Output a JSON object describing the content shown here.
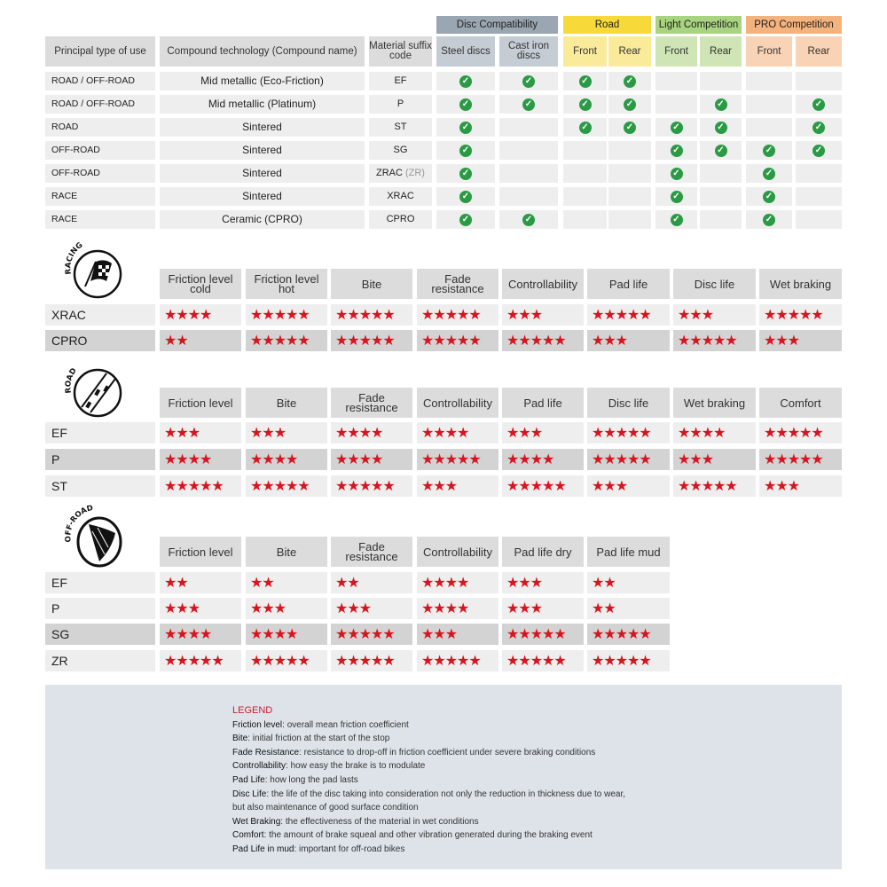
{
  "compatibility": {
    "group_headers": [
      {
        "label": "Disc Compatibility",
        "color": "#9aa6b1"
      },
      {
        "label": "Road",
        "color": "#f7d93a"
      },
      {
        "label": "Light Competition",
        "color": "#a8d37f"
      },
      {
        "label": "PRO Competition",
        "color": "#f4b27d"
      }
    ],
    "sub_header_colors": [
      "#c5ccd3",
      "#faeb9a",
      "#cfe5b5",
      "#f9d3b5"
    ],
    "headers": [
      "Principal type of use",
      "Compound technology (Compound name)",
      "Material suffix code",
      "Steel discs",
      "Cast iron discs",
      "Front",
      "Rear",
      "Front",
      "Rear",
      "Front",
      "Rear"
    ],
    "check_color": "#2a9a45",
    "rows": [
      {
        "use": "ROAD / OFF-ROAD",
        "compound": "Mid metallic (Eco-Friction)",
        "code": "EF",
        "code_note": "",
        "checks": [
          1,
          1,
          1,
          1,
          0,
          0,
          0,
          0
        ]
      },
      {
        "use": "ROAD / OFF-ROAD",
        "compound": "Mid metallic (Platinum)",
        "code": "P",
        "code_note": "",
        "checks": [
          1,
          1,
          1,
          1,
          0,
          1,
          0,
          1
        ]
      },
      {
        "use": "ROAD",
        "compound": "Sintered",
        "code": "ST",
        "code_note": "",
        "checks": [
          1,
          0,
          1,
          1,
          1,
          1,
          0,
          1
        ]
      },
      {
        "use": "OFF-ROAD",
        "compound": "Sintered",
        "code": "SG",
        "code_note": "",
        "checks": [
          1,
          0,
          0,
          0,
          1,
          1,
          1,
          1
        ]
      },
      {
        "use": "OFF-ROAD",
        "compound": "Sintered",
        "code": "ZRAC",
        "code_note": "(ZR)",
        "checks": [
          1,
          0,
          0,
          0,
          1,
          0,
          1,
          0
        ]
      },
      {
        "use": "RACE",
        "compound": "Sintered",
        "code": "XRAC",
        "code_note": "",
        "checks": [
          1,
          0,
          0,
          0,
          1,
          0,
          1,
          0
        ]
      },
      {
        "use": "RACE",
        "compound": "Ceramic (CPRO)",
        "code": "CPRO",
        "code_note": "",
        "checks": [
          1,
          1,
          0,
          0,
          1,
          0,
          1,
          0
        ]
      }
    ]
  },
  "star_color": "#d8141f",
  "ratings": [
    {
      "icon_label": "RACING",
      "headers": [
        "Friction level cold",
        "Friction level hot",
        "Bite",
        "Fade resistance",
        "Controllability",
        "Pad life",
        "Disc life",
        "Wet braking"
      ],
      "rows": [
        {
          "code": "XRAC",
          "stars": [
            4,
            5,
            5,
            5,
            3,
            5,
            3,
            5
          ]
        },
        {
          "code": "CPRO",
          "stars": [
            2,
            5,
            5,
            5,
            5,
            3,
            5,
            3
          ]
        }
      ]
    },
    {
      "icon_label": "ROAD",
      "headers": [
        "Friction level",
        "Bite",
        "Fade resistance",
        "Controllability",
        "Pad life",
        "Disc life",
        "Wet braking",
        "Comfort"
      ],
      "rows": [
        {
          "code": "EF",
          "stars": [
            3,
            3,
            4,
            4,
            3,
            5,
            4,
            5
          ]
        },
        {
          "code": "P",
          "stars": [
            4,
            4,
            4,
            5,
            4,
            5,
            3,
            5
          ]
        },
        {
          "code": "ST",
          "stars": [
            5,
            5,
            5,
            3,
            5,
            3,
            5,
            3
          ]
        }
      ]
    },
    {
      "icon_label": "OFF-ROAD",
      "headers": [
        "Friction level",
        "Bite",
        "Fade resistance",
        "Controllability",
        "Pad life dry",
        "Pad life mud"
      ],
      "rows": [
        {
          "code": "EF",
          "stars": [
            2,
            2,
            2,
            4,
            3,
            2
          ]
        },
        {
          "code": "P",
          "stars": [
            3,
            3,
            3,
            4,
            3,
            2
          ]
        },
        {
          "code": "SG",
          "stars": [
            4,
            4,
            5,
            3,
            5,
            5
          ]
        },
        {
          "code": "ZR",
          "stars": [
            5,
            5,
            5,
            5,
            5,
            5
          ]
        }
      ]
    }
  ],
  "legend": {
    "title": "LEGEND",
    "items": [
      {
        "term": "Friction level",
        "desc": ": overall mean friction coefficient"
      },
      {
        "term": "Bite",
        "desc": ": initial friction at the start of the stop"
      },
      {
        "term": "Fade Resistance",
        "desc": ": resistance to drop-off in friction coefficient under severe braking conditions"
      },
      {
        "term": "Controllability",
        "desc": ": how easy the brake is to modulate"
      },
      {
        "term": "Pad Life",
        "desc": ": how long the pad lasts"
      },
      {
        "term": "Disc Life",
        "desc": ": the life of the disc taking into consideration not only the reduction in thickness due to wear,"
      },
      {
        "term": "",
        "desc": "but also maintenance of good surface condition"
      },
      {
        "term": "Wet Braking",
        "desc": ": the effectiveness of the material in wet conditions"
      },
      {
        "term": "Comfort",
        "desc": ": the amount of brake squeal and other vibration generated during the braking event"
      },
      {
        "term": "Pad Life in mud",
        "desc": ": important for off-road bikes"
      }
    ]
  }
}
